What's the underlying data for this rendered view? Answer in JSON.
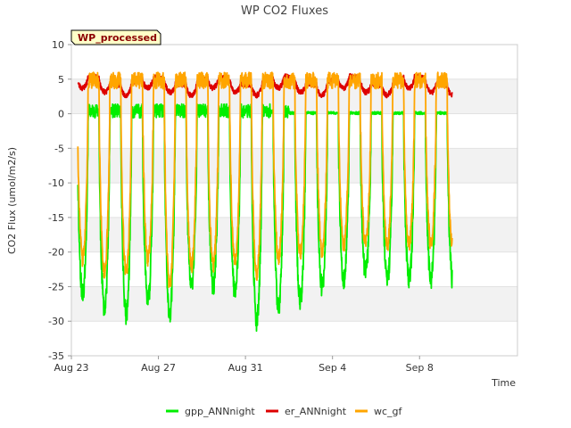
{
  "chart_data": {
    "type": "line",
    "title": "WP CO2 Fluxes",
    "badge": "WP_processed",
    "xlabel": "Time",
    "ylabel": "CO2 Flux (umol/m2/s)",
    "ylim": [
      -35,
      10
    ],
    "yticks": [
      10,
      5,
      0,
      -5,
      -10,
      -15,
      -20,
      -25,
      -30,
      -35
    ],
    "xlim": [
      0,
      20.5
    ],
    "xticks": [
      {
        "value": 0,
        "label": "Aug 23"
      },
      {
        "value": 4,
        "label": "Aug 27"
      },
      {
        "value": 8,
        "label": "Aug 31"
      },
      {
        "value": 12,
        "label": "Sep 4"
      },
      {
        "value": 16,
        "label": "Sep 8"
      }
    ],
    "x_start_day": 0.3,
    "x_end_day": 17.5,
    "daily_minima": {
      "gpp_ANNnight": [
        -26,
        -28,
        -29,
        -27,
        -29,
        -25,
        -25,
        -26,
        -30,
        -28,
        -27,
        -25,
        -24,
        -23,
        -24
      ],
      "wc_gf": [
        -21,
        -23,
        -23,
        -21,
        -25,
        -22,
        -22,
        -21,
        -23,
        -21,
        -20,
        -20,
        -19,
        -19,
        -19
      ]
    },
    "series": [
      {
        "name": "gpp_ANNnight",
        "color": "#00ee00",
        "night_level": 0.5
      },
      {
        "name": "er_ANNnight",
        "color": "#dd0000",
        "night_level": 5
      },
      {
        "name": "wc_gf",
        "color": "#ffa500",
        "night_level": 5
      }
    ],
    "legend_position": "bottom"
  }
}
